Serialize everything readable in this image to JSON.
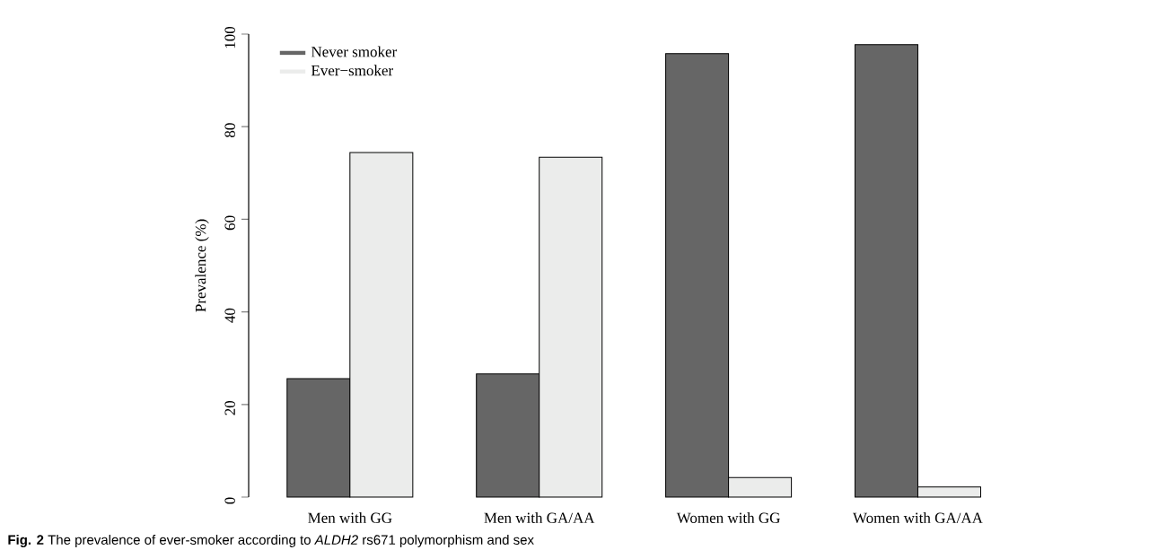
{
  "chart_data": {
    "type": "bar",
    "categories": [
      "Men with GG",
      "Men with GA/AA",
      "Women with GG",
      "Women with GA/AA"
    ],
    "series": [
      {
        "name": "Never smoker",
        "color": "#666666",
        "values": [
          25.6,
          26.6,
          95.8,
          97.7
        ]
      },
      {
        "name": "Ever−smoker",
        "color": "#ebeceb",
        "values": [
          74.4,
          73.4,
          4.2,
          2.2
        ]
      }
    ],
    "ylabel": "Prevalence (%)",
    "ylim": [
      0,
      100
    ],
    "yticks": [
      0,
      20,
      40,
      60,
      80,
      100
    ],
    "legend": "top left",
    "annotations": [
      "**Fig. 2** The prevalence of ever-smoker according to *ALDH2* rs671 polymorphism and sex"
    ]
  }
}
